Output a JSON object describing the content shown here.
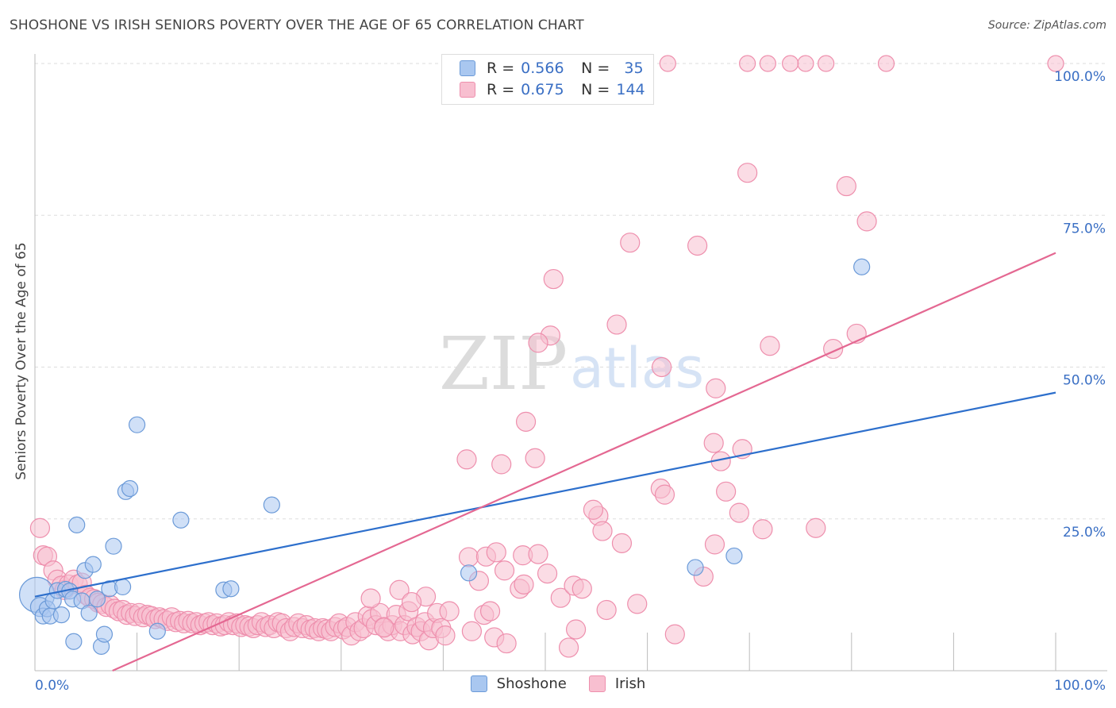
{
  "title": "SHOSHONE VS IRISH SENIORS POVERTY OVER THE AGE OF 65 CORRELATION CHART",
  "source": "Source: ZipAtlas.com",
  "watermark": {
    "zip": "ZIP",
    "atlas": "atlas"
  },
  "legend_top": [
    {
      "r_label": "R =",
      "r_value": "0.566",
      "n_label": "N =",
      "n_value": "35"
    },
    {
      "r_label": "R =",
      "r_value": "0.675",
      "n_label": "N =",
      "n_value": "144"
    }
  ],
  "colors": {
    "shoshone_fill": "#a9c7f0",
    "shoshone_stroke": "#6b9ad8",
    "shoshone_line": "#2d6fcc",
    "irish_fill": "#f8bfd0",
    "irish_stroke": "#ee8fad",
    "irish_line": "#e46892",
    "tick_label": "#3a6fc4",
    "grid": "#dddddd"
  },
  "chart_data": {
    "type": "scatter",
    "title": "SHOSHONE VS IRISH SENIORS POVERTY OVER THE AGE OF 65 CORRELATION CHART",
    "xlabel": "",
    "ylabel": "Seniors Poverty Over the Age of 65",
    "xlim": [
      0,
      100
    ],
    "ylim": [
      0,
      100
    ],
    "x_tick_labels": [
      "0.0%",
      "100.0%"
    ],
    "y_tick_labels": [
      "25.0%",
      "50.0%",
      "75.0%",
      "100.0%"
    ],
    "y_ticks": [
      25,
      50,
      75,
      100
    ],
    "grid": true,
    "legend_position": "bottom",
    "series": [
      {
        "name": "Shoshone",
        "r": 0.566,
        "n": 35,
        "trend": [
          [
            0,
            12.2
          ],
          [
            100,
            45.8
          ]
        ],
        "points": [
          [
            0.2,
            12.5,
            22
          ],
          [
            0.5,
            10.5,
            12
          ],
          [
            0.8,
            9,
            10
          ],
          [
            1.2,
            10.2,
            10
          ],
          [
            1.5,
            9,
            10
          ],
          [
            1.8,
            11.5,
            10
          ],
          [
            2.2,
            13.2,
            10
          ],
          [
            2.6,
            9.2,
            10
          ],
          [
            3,
            13.4,
            10
          ],
          [
            3.4,
            13.1,
            10
          ],
          [
            3.7,
            11.8,
            10
          ],
          [
            3.8,
            4.8,
            10
          ],
          [
            4.1,
            24,
            10
          ],
          [
            4.6,
            11.5,
            10
          ],
          [
            4.9,
            16.5,
            10
          ],
          [
            5.3,
            9.5,
            10
          ],
          [
            5.7,
            17.5,
            10
          ],
          [
            6.1,
            11.8,
            10
          ],
          [
            6.5,
            4,
            10
          ],
          [
            6.8,
            6,
            10
          ],
          [
            7.3,
            13.5,
            10
          ],
          [
            7.7,
            20.5,
            10
          ],
          [
            8.6,
            13.8,
            10
          ],
          [
            8.9,
            29.5,
            10
          ],
          [
            9.3,
            30,
            10
          ],
          [
            10,
            40.5,
            10
          ],
          [
            12,
            6.5,
            10
          ],
          [
            14.3,
            24.8,
            10
          ],
          [
            18.5,
            13.3,
            10
          ],
          [
            19.2,
            13.5,
            10
          ],
          [
            23.2,
            27.3,
            10
          ],
          [
            42.5,
            16.1,
            10
          ],
          [
            64.7,
            17,
            10
          ],
          [
            68.5,
            18.9,
            10
          ],
          [
            81,
            66.5,
            10
          ]
        ]
      },
      {
        "name": "Irish",
        "r": 0.675,
        "n": 144,
        "trend": [
          [
            7.6,
            0
          ],
          [
            100,
            68.8
          ]
        ],
        "points": [
          [
            0.5,
            23.5,
            12
          ],
          [
            0.8,
            19,
            12
          ],
          [
            1.2,
            18.8,
            12
          ],
          [
            1.8,
            16.5,
            12
          ],
          [
            2.2,
            15,
            12
          ],
          [
            2.6,
            14,
            12
          ],
          [
            2.9,
            13.3,
            12
          ],
          [
            3.3,
            14.2,
            12
          ],
          [
            3.8,
            15,
            12
          ],
          [
            4.2,
            14.2,
            12
          ],
          [
            4.6,
            14.5,
            12
          ],
          [
            5,
            12.5,
            12
          ],
          [
            5.4,
            12,
            12
          ],
          [
            5.8,
            11.8,
            12
          ],
          [
            6.2,
            11.2,
            12
          ],
          [
            6.6,
            11,
            12
          ],
          [
            7,
            10.5,
            12
          ],
          [
            7.4,
            10.8,
            12
          ],
          [
            7.8,
            10.2,
            12
          ],
          [
            8.2,
            9.8,
            12
          ],
          [
            8.6,
            10,
            12
          ],
          [
            9,
            9.2,
            12
          ],
          [
            9.4,
            9.5,
            12
          ],
          [
            9.8,
            9,
            12
          ],
          [
            10.2,
            9.5,
            12
          ],
          [
            10.6,
            8.8,
            12
          ],
          [
            11,
            9.2,
            12
          ],
          [
            11.4,
            9,
            12
          ],
          [
            11.8,
            8.5,
            12
          ],
          [
            12.2,
            8.8,
            12
          ],
          [
            12.6,
            8.5,
            12
          ],
          [
            13,
            8.2,
            12
          ],
          [
            13.4,
            8.8,
            12
          ],
          [
            13.8,
            8,
            12
          ],
          [
            14.2,
            8.2,
            12
          ],
          [
            14.6,
            7.8,
            12
          ],
          [
            15,
            8.2,
            12
          ],
          [
            15.4,
            7.8,
            12
          ],
          [
            15.8,
            8,
            12
          ],
          [
            16.2,
            7.5,
            12
          ],
          [
            16.6,
            7.8,
            12
          ],
          [
            17,
            8,
            12
          ],
          [
            17.4,
            7.5,
            12
          ],
          [
            17.8,
            7.8,
            12
          ],
          [
            18.2,
            7.3,
            12
          ],
          [
            18.6,
            7.5,
            12
          ],
          [
            19,
            8,
            12
          ],
          [
            19.4,
            7.5,
            12
          ],
          [
            19.8,
            7.8,
            12
          ],
          [
            20.2,
            7.2,
            12
          ],
          [
            20.6,
            7.5,
            12
          ],
          [
            21,
            7.3,
            12
          ],
          [
            21.4,
            7,
            12
          ],
          [
            21.8,
            7.5,
            12
          ],
          [
            22.2,
            8,
            12
          ],
          [
            22.6,
            7.2,
            12
          ],
          [
            23,
            7.5,
            12
          ],
          [
            23.4,
            7,
            12
          ],
          [
            23.8,
            8,
            12
          ],
          [
            24.2,
            7.8,
            12
          ],
          [
            24.6,
            7,
            12
          ],
          [
            25,
            6.5,
            12
          ],
          [
            25.4,
            7.2,
            12
          ],
          [
            25.8,
            7.8,
            12
          ],
          [
            26.2,
            7,
            12
          ],
          [
            26.6,
            7.5,
            12
          ],
          [
            27,
            6.8,
            12
          ],
          [
            27.4,
            7,
            12
          ],
          [
            27.8,
            6.5,
            12
          ],
          [
            28.2,
            7,
            12
          ],
          [
            28.6,
            6.8,
            12
          ],
          [
            29,
            6.5,
            12
          ],
          [
            29.4,
            7.2,
            12
          ],
          [
            29.8,
            7.8,
            12
          ],
          [
            30.2,
            6.8,
            12
          ],
          [
            30.6,
            7.2,
            12
          ],
          [
            31,
            5.8,
            12
          ],
          [
            31.4,
            8,
            12
          ],
          [
            31.8,
            6.5,
            12
          ],
          [
            32.2,
            7,
            12
          ],
          [
            32.6,
            9,
            12
          ],
          [
            33,
            8.5,
            12
          ],
          [
            33.4,
            7.5,
            12
          ],
          [
            33.8,
            9.5,
            12
          ],
          [
            34.2,
            7.2,
            12
          ],
          [
            34.6,
            6.5,
            12
          ],
          [
            35,
            7.5,
            12
          ],
          [
            35.4,
            9.2,
            12
          ],
          [
            35.8,
            6.5,
            12
          ],
          [
            36.2,
            7.5,
            12
          ],
          [
            36.6,
            9.8,
            12
          ],
          [
            37,
            6,
            12
          ],
          [
            37.4,
            7.2,
            12
          ],
          [
            37.8,
            6.5,
            12
          ],
          [
            38.2,
            8,
            12
          ],
          [
            38.6,
            5,
            12
          ],
          [
            39,
            7,
            12
          ],
          [
            39.4,
            9.5,
            12
          ],
          [
            39.8,
            7,
            12
          ],
          [
            40.2,
            5.8,
            12
          ],
          [
            40.6,
            9.8,
            12
          ],
          [
            44,
            9.2,
            12
          ],
          [
            45,
            5.5,
            12
          ],
          [
            46,
            16.5,
            12
          ],
          [
            47.5,
            13.5,
            12
          ],
          [
            47.8,
            19,
            12
          ],
          [
            35.7,
            13.3,
            12
          ],
          [
            38.3,
            12.2,
            12
          ],
          [
            36.9,
            11.3,
            12
          ],
          [
            32.9,
            11.9,
            12
          ],
          [
            42.8,
            6.5,
            12
          ],
          [
            43.5,
            14.8,
            12
          ],
          [
            34.2,
            7.1,
            12
          ],
          [
            44.6,
            9.8,
            12
          ],
          [
            42.5,
            18.7,
            12
          ],
          [
            44.2,
            18.8,
            12
          ],
          [
            45.2,
            19.5,
            12
          ],
          [
            46.2,
            4.5,
            12
          ],
          [
            47.9,
            14.2,
            12
          ],
          [
            49.3,
            19.2,
            12
          ],
          [
            50.2,
            16,
            12
          ],
          [
            51.5,
            12,
            12
          ],
          [
            52.3,
            3.8,
            12
          ],
          [
            52.8,
            14,
            12
          ],
          [
            53,
            6.8,
            12
          ],
          [
            53.6,
            13.5,
            12
          ],
          [
            55.2,
            25.5,
            12
          ],
          [
            54.7,
            26.5,
            12
          ],
          [
            55.6,
            23,
            12
          ],
          [
            56,
            10,
            12
          ],
          [
            57.5,
            21,
            12
          ],
          [
            59,
            11,
            12
          ],
          [
            62.7,
            6,
            12
          ],
          [
            65.5,
            15.5,
            12
          ],
          [
            66.6,
            20.8,
            12
          ],
          [
            67.2,
            34.5,
            12
          ],
          [
            69,
            26,
            12
          ],
          [
            71.3,
            23.3,
            12
          ],
          [
            76.5,
            23.5,
            12
          ],
          [
            42.3,
            34.8,
            12
          ],
          [
            45.7,
            34,
            12
          ],
          [
            48.1,
            41,
            12
          ],
          [
            49,
            35,
            12
          ],
          [
            50.5,
            55.2,
            12
          ],
          [
            49.3,
            54,
            12
          ],
          [
            50.8,
            64.5,
            12
          ],
          [
            57,
            57,
            12
          ],
          [
            58.3,
            70.5,
            12
          ],
          [
            61.3,
            30,
            12
          ],
          [
            61.7,
            29,
            12
          ],
          [
            61.4,
            50,
            12
          ],
          [
            64.9,
            70,
            12
          ],
          [
            66.5,
            37.5,
            12
          ],
          [
            66.7,
            46.5,
            12
          ],
          [
            67.7,
            29.5,
            12
          ],
          [
            69.3,
            36.5,
            12
          ],
          [
            69.8,
            82,
            12
          ],
          [
            72,
            53.5,
            12
          ],
          [
            78.2,
            53,
            12
          ],
          [
            79.5,
            79.8,
            12
          ],
          [
            80.5,
            55.5,
            12
          ],
          [
            81.5,
            74,
            12
          ],
          [
            62,
            100,
            10
          ],
          [
            69.8,
            100,
            10
          ],
          [
            71.8,
            100,
            10
          ],
          [
            75.5,
            100,
            10
          ],
          [
            77.5,
            100,
            10
          ],
          [
            83.4,
            100,
            10
          ],
          [
            100,
            100,
            10
          ],
          [
            74,
            100,
            10
          ]
        ]
      }
    ]
  }
}
